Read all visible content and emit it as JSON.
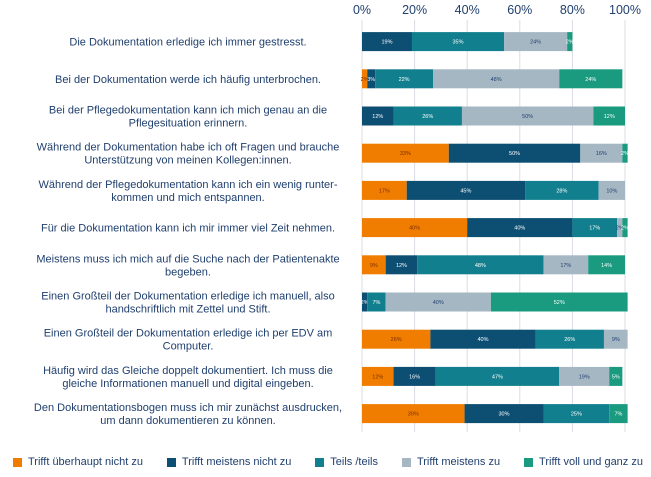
{
  "chart_data": {
    "type": "bar",
    "orientation": "horizontal",
    "stacked": true,
    "xlim": [
      0,
      100
    ],
    "x_ticks": [
      "0%",
      "20%",
      "40%",
      "60%",
      "80%",
      "100%"
    ],
    "grid": true,
    "legend_position": "bottom",
    "colors": [
      "#f07d00",
      "#0d4e73",
      "#127f8e",
      "#a6b7c4",
      "#1a9b80"
    ],
    "label_colors": [
      "#7a2e00",
      "#ffffff",
      "#ffffff",
      "#1f3f6e",
      "#ffffff"
    ],
    "categories": [
      [
        "Die Dokumentation erledige ich immer gestresst."
      ],
      [
        "Bei der Dokumentation werde ich häufig unterbrochen."
      ],
      [
        "Bei der Pflegedokumentation kann ich mich genau an die",
        "Pflegesituation erinnern."
      ],
      [
        "Während der Dokumentation habe ich oft Fragen und brauche",
        "Unterstützung von meinen Kollegen:innen."
      ],
      [
        "Während der Pflegedokumentation kann ich ein wenig runter-",
        "kommen und mich entspannen."
      ],
      [
        "Für die Dokumentation kann ich mir immer viel Zeit nehmen."
      ],
      [
        "Meistens muss ich mich auf die Suche nach der Patientenakte",
        "begeben."
      ],
      [
        "Einen Großteil der Dokumentation erledige ich manuell,  also",
        "handschriftlich mit Zettel und Stift."
      ],
      [
        "Einen Großteil der Dokumentation erledige ich per EDV am",
        "Computer."
      ],
      [
        "Häufig wird das Gleiche doppelt dokumentiert. Ich muss die",
        "gleiche Informationen manuell und digital eingeben."
      ],
      [
        "Den Dokumentationsbogen muss ich mir zunächst ausdrucken,",
        "um dann dokumentieren zu können."
      ]
    ],
    "series": [
      {
        "name": "Trifft überhaupt nicht zu",
        "values": [
          0,
          2,
          0,
          33,
          17,
          40,
          9,
          0,
          26,
          12,
          39
        ]
      },
      {
        "name": "Trifft meistens nicht zu",
        "values": [
          19,
          3,
          12,
          50,
          45,
          40,
          12,
          2,
          40,
          16,
          30
        ]
      },
      {
        "name": "Teils /teils",
        "values": [
          35,
          22,
          26,
          0,
          28,
          17,
          48,
          7,
          26,
          47,
          25
        ]
      },
      {
        "name": "Trifft meistens zu",
        "values": [
          24,
          48,
          50,
          16,
          10,
          2,
          17,
          40,
          9,
          19,
          0
        ]
      },
      {
        "name": "Trifft voll und ganz zu",
        "values": [
          2,
          24,
          12,
          2,
          0,
          2,
          14,
          52,
          0,
          5,
          7
        ]
      }
    ]
  }
}
